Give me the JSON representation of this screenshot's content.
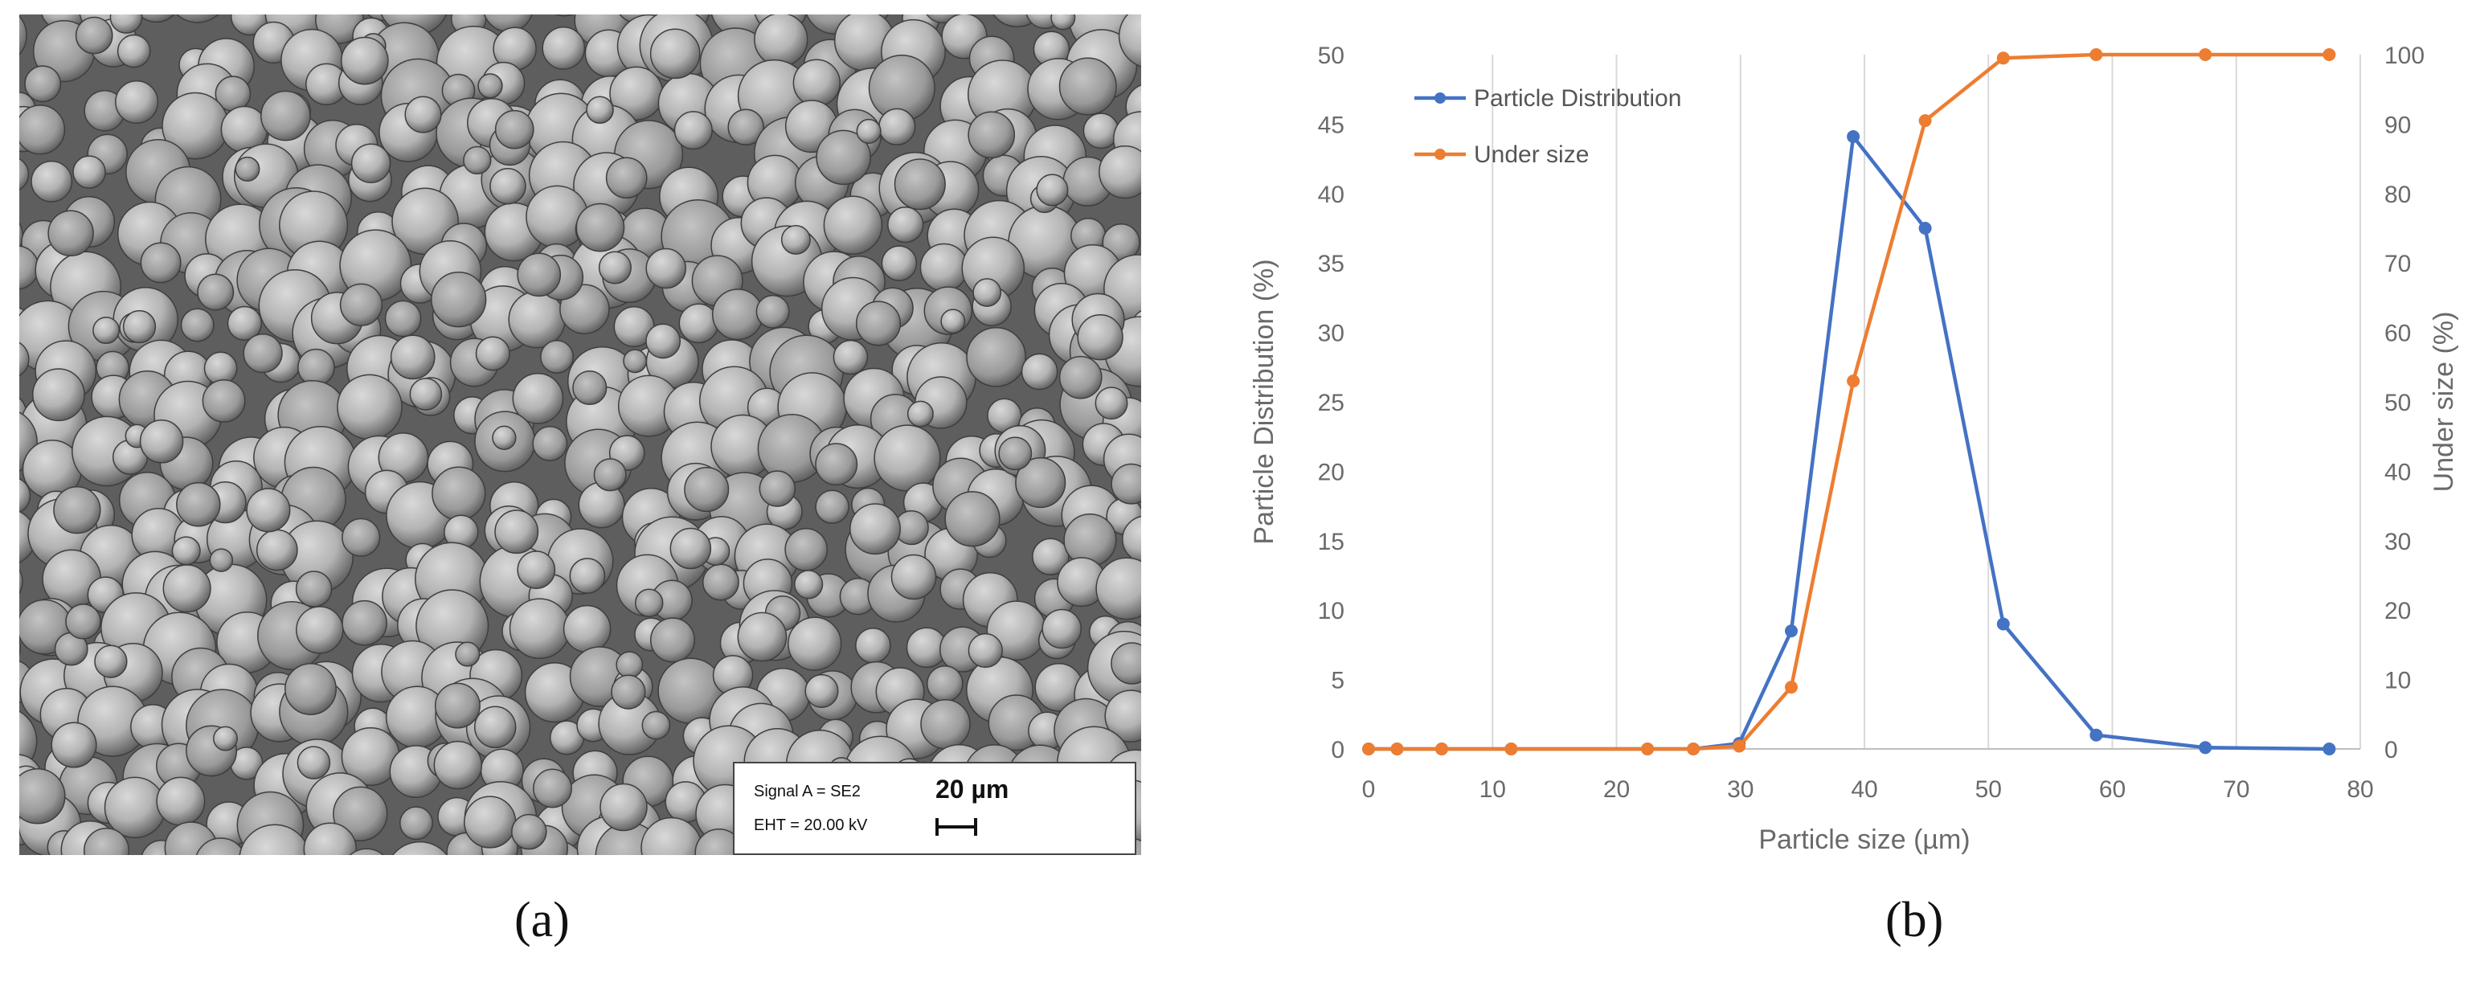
{
  "panel_a": {
    "caption": "(a)",
    "sem_info": {
      "signal": "Signal A = SE2",
      "eht": "EHT = 20.00 kV",
      "scale": "20 µm"
    }
  },
  "panel_b": {
    "caption": "(b)"
  },
  "colors": {
    "blue": "#4472C4",
    "orange": "#ED7D31",
    "grid": "#d9d9d9"
  },
  "chart_data": {
    "type": "line",
    "xlabel": "Particle size (µm)",
    "ylabel": "Particle Distribution (%)",
    "y2label": "Under size (%)",
    "xlim": [
      0,
      80
    ],
    "ylim": [
      0,
      50
    ],
    "y2lim": [
      0,
      100
    ],
    "xticks": [
      "0",
      "10",
      "20",
      "30",
      "40",
      "50",
      "60",
      "70",
      "80"
    ],
    "yticks": [
      "0",
      "5",
      "10",
      "15",
      "20",
      "25",
      "30",
      "35",
      "40",
      "45",
      "50"
    ],
    "y2ticks": [
      "0",
      "10",
      "20",
      "30",
      "40",
      "50",
      "60",
      "70",
      "80",
      "90",
      "100"
    ],
    "grid": "vertical",
    "legend_position": "top-left",
    "series": [
      {
        "name": "Particle Distribution",
        "axis": "left",
        "color": "#4472C4",
        "points": [
          [
            0,
            0
          ],
          [
            2.3,
            0
          ],
          [
            5.9,
            0
          ],
          [
            11.5,
            0
          ],
          [
            22.5,
            0
          ],
          [
            26.2,
            0
          ],
          [
            29.9,
            0.4
          ],
          [
            34.1,
            8.5
          ],
          [
            39.1,
            44.1
          ],
          [
            44.9,
            37.5
          ],
          [
            51.2,
            9.0
          ],
          [
            58.7,
            1.0
          ],
          [
            67.5,
            0.1
          ],
          [
            77.5,
            0
          ]
        ]
      },
      {
        "name": "Under size",
        "axis": "right",
        "color": "#ED7D31",
        "points": [
          [
            0,
            0
          ],
          [
            2.3,
            0
          ],
          [
            5.9,
            0
          ],
          [
            11.5,
            0
          ],
          [
            22.5,
            0
          ],
          [
            26.2,
            0
          ],
          [
            29.9,
            0.4
          ],
          [
            34.1,
            8.9
          ],
          [
            39.1,
            53.0
          ],
          [
            44.9,
            90.5
          ],
          [
            51.2,
            99.5
          ],
          [
            58.7,
            100
          ],
          [
            67.5,
            100
          ],
          [
            77.5,
            100
          ]
        ]
      }
    ]
  }
}
